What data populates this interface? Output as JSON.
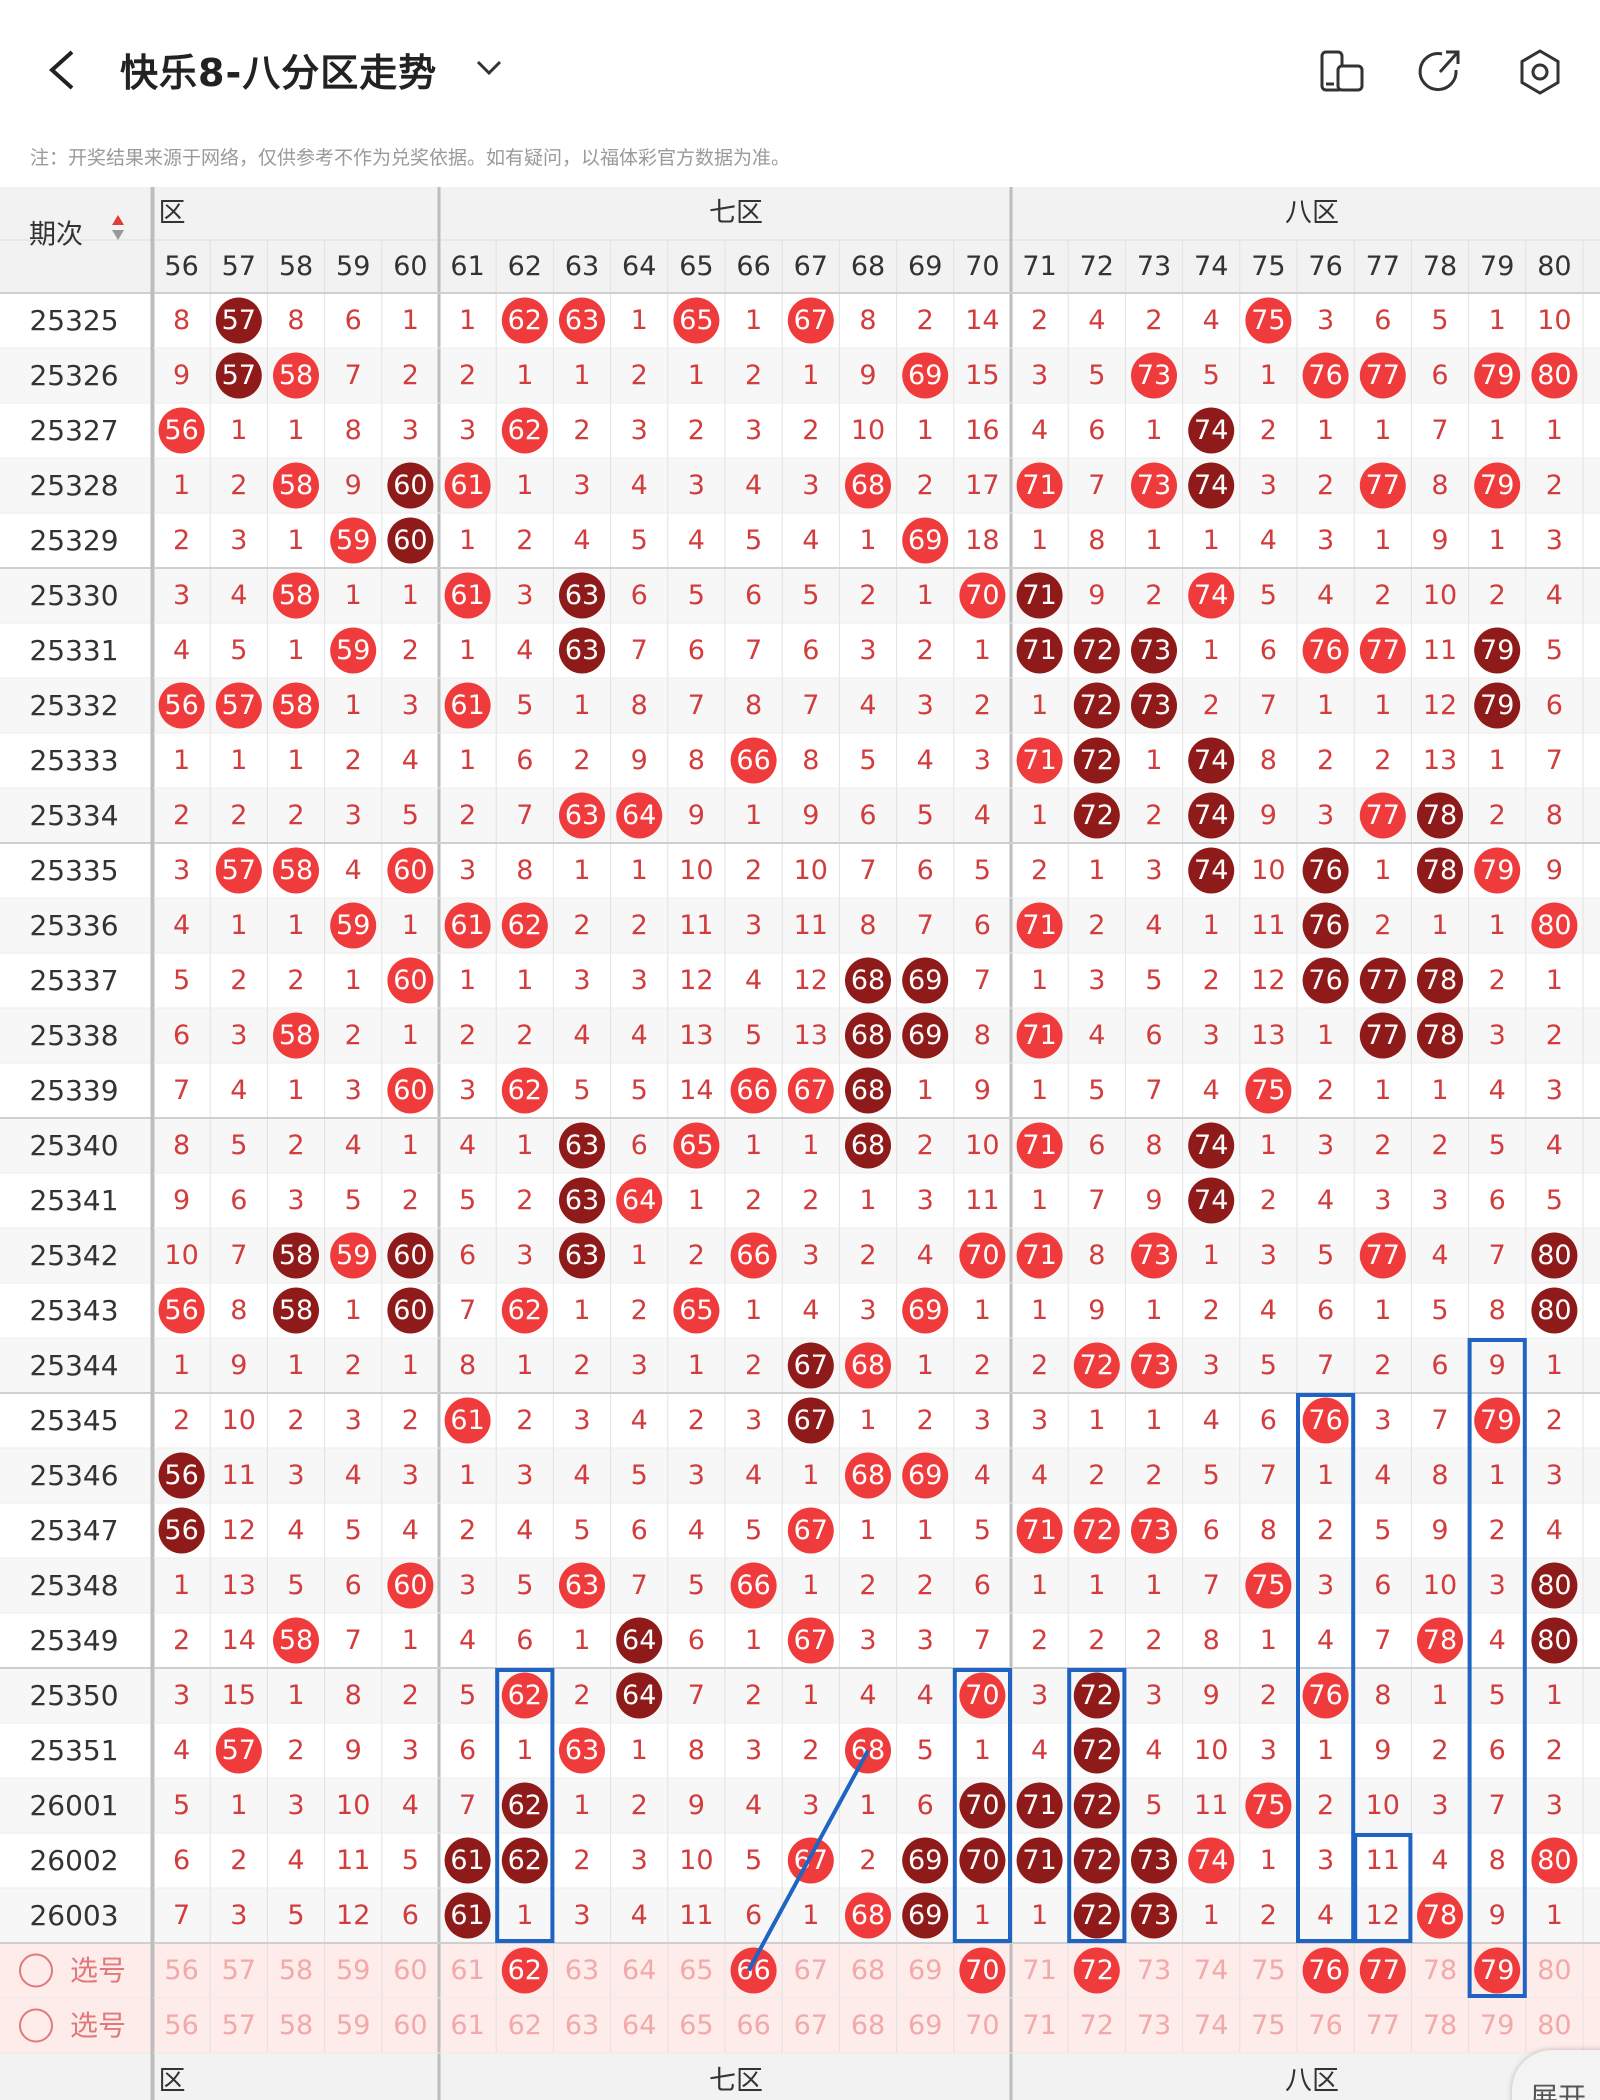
{
  "header": {
    "title": "快乐8-八分区走势",
    "back_icon": "chevron-left-icon",
    "dropdown_icon": "chevron-down-icon",
    "icons": [
      "phone-tablet-icon",
      "share-icon",
      "settings-hexagon-icon"
    ]
  },
  "notice": "注：开奖结果来源于网络，仅供参考不作为兑奖依据。如有疑问，以福体彩官方数据为准。",
  "table": {
    "period_header": "期次",
    "zones": [
      "六区",
      "七区",
      "八区"
    ],
    "zone_labels_visible": [
      "区",
      "七区",
      "八区"
    ],
    "columns": [
      56,
      57,
      58,
      59,
      60,
      61,
      62,
      63,
      64,
      65,
      66,
      67,
      68,
      69,
      70,
      71,
      72,
      73,
      74,
      75,
      76,
      77,
      78,
      79,
      80
    ],
    "rows": [
      {
        "period": "25325",
        "cells": [
          8,
          57,
          8,
          6,
          1,
          1,
          62,
          63,
          1,
          65,
          1,
          67,
          8,
          2,
          14,
          2,
          4,
          2,
          4,
          75,
          3,
          6,
          5,
          1,
          10
        ]
      },
      {
        "period": "25326",
        "cells": [
          9,
          57,
          58,
          7,
          2,
          2,
          1,
          1,
          2,
          1,
          2,
          1,
          9,
          69,
          15,
          3,
          5,
          73,
          5,
          1,
          76,
          77,
          6,
          79,
          80
        ]
      },
      {
        "period": "25327",
        "cells": [
          56,
          1,
          1,
          8,
          3,
          3,
          62,
          2,
          3,
          2,
          3,
          2,
          10,
          1,
          16,
          4,
          6,
          1,
          74,
          2,
          1,
          1,
          7,
          1,
          1
        ]
      },
      {
        "period": "25328",
        "cells": [
          1,
          2,
          58,
          9,
          60,
          61,
          1,
          3,
          4,
          3,
          4,
          3,
          68,
          2,
          17,
          71,
          7,
          73,
          74,
          3,
          2,
          77,
          8,
          79,
          2
        ]
      },
      {
        "period": "25329",
        "cells": [
          2,
          3,
          1,
          59,
          60,
          1,
          2,
          4,
          5,
          4,
          5,
          4,
          1,
          69,
          18,
          1,
          8,
          1,
          1,
          4,
          3,
          1,
          9,
          1,
          3
        ]
      },
      {
        "period": "25330",
        "cells": [
          3,
          4,
          58,
          1,
          1,
          61,
          3,
          63,
          6,
          5,
          6,
          5,
          2,
          1,
          70,
          71,
          9,
          2,
          74,
          5,
          4,
          2,
          10,
          2,
          4
        ]
      },
      {
        "period": "25331",
        "cells": [
          4,
          5,
          1,
          59,
          2,
          1,
          4,
          63,
          7,
          6,
          7,
          6,
          3,
          2,
          1,
          71,
          72,
          73,
          1,
          6,
          76,
          77,
          11,
          79,
          5
        ]
      },
      {
        "period": "25332",
        "cells": [
          56,
          57,
          58,
          1,
          3,
          61,
          5,
          1,
          8,
          7,
          8,
          7,
          4,
          3,
          2,
          1,
          72,
          73,
          2,
          7,
          1,
          1,
          12,
          79,
          6
        ]
      },
      {
        "period": "25333",
        "cells": [
          1,
          1,
          1,
          2,
          4,
          1,
          6,
          2,
          9,
          8,
          66,
          8,
          5,
          4,
          3,
          71,
          72,
          1,
          74,
          8,
          2,
          2,
          13,
          1,
          7
        ]
      },
      {
        "period": "25334",
        "cells": [
          2,
          2,
          2,
          3,
          5,
          2,
          7,
          63,
          64,
          9,
          1,
          9,
          6,
          5,
          4,
          1,
          72,
          2,
          74,
          9,
          3,
          77,
          78,
          2,
          8
        ]
      },
      {
        "period": "25335",
        "cells": [
          3,
          57,
          58,
          4,
          60,
          3,
          8,
          1,
          1,
          10,
          2,
          10,
          7,
          6,
          5,
          2,
          1,
          3,
          74,
          10,
          76,
          1,
          78,
          79,
          9
        ]
      },
      {
        "period": "25336",
        "cells": [
          4,
          1,
          1,
          59,
          1,
          61,
          62,
          2,
          2,
          11,
          3,
          11,
          8,
          7,
          6,
          71,
          2,
          4,
          1,
          11,
          76,
          2,
          1,
          1,
          80
        ]
      },
      {
        "period": "25337",
        "cells": [
          5,
          2,
          2,
          1,
          60,
          1,
          1,
          3,
          3,
          12,
          4,
          12,
          68,
          69,
          7,
          1,
          3,
          5,
          2,
          12,
          76,
          77,
          78,
          2,
          1
        ]
      },
      {
        "period": "25338",
        "cells": [
          6,
          3,
          58,
          2,
          1,
          2,
          2,
          4,
          4,
          13,
          5,
          13,
          68,
          69,
          8,
          71,
          4,
          6,
          3,
          13,
          1,
          77,
          78,
          3,
          2
        ]
      },
      {
        "period": "25339",
        "cells": [
          7,
          4,
          1,
          3,
          60,
          3,
          62,
          5,
          5,
          14,
          66,
          67,
          68,
          1,
          9,
          1,
          5,
          7,
          4,
          75,
          2,
          1,
          1,
          4,
          3
        ]
      },
      {
        "period": "25340",
        "cells": [
          8,
          5,
          2,
          4,
          1,
          4,
          1,
          63,
          6,
          65,
          1,
          1,
          68,
          2,
          10,
          71,
          6,
          8,
          74,
          1,
          3,
          2,
          2,
          5,
          4
        ]
      },
      {
        "period": "25341",
        "cells": [
          9,
          6,
          3,
          5,
          2,
          5,
          2,
          63,
          64,
          1,
          2,
          2,
          1,
          3,
          11,
          1,
          7,
          9,
          74,
          2,
          4,
          3,
          3,
          6,
          5
        ]
      },
      {
        "period": "25342",
        "cells": [
          10,
          7,
          58,
          59,
          60,
          6,
          3,
          63,
          1,
          2,
          66,
          3,
          2,
          4,
          70,
          71,
          8,
          73,
          1,
          3,
          5,
          77,
          4,
          7,
          80
        ]
      },
      {
        "period": "25343",
        "cells": [
          56,
          8,
          58,
          1,
          60,
          7,
          62,
          1,
          2,
          65,
          1,
          4,
          3,
          69,
          1,
          1,
          9,
          1,
          2,
          4,
          6,
          1,
          5,
          8,
          80
        ]
      },
      {
        "period": "25344",
        "cells": [
          1,
          9,
          1,
          2,
          1,
          8,
          1,
          2,
          3,
          1,
          2,
          67,
          68,
          1,
          2,
          2,
          72,
          73,
          3,
          5,
          7,
          2,
          6,
          9,
          1
        ]
      },
      {
        "period": "25345",
        "cells": [
          2,
          10,
          2,
          3,
          2,
          61,
          2,
          3,
          4,
          2,
          3,
          67,
          1,
          2,
          3,
          3,
          1,
          1,
          4,
          6,
          76,
          3,
          7,
          79,
          2
        ]
      },
      {
        "period": "25346",
        "cells": [
          56,
          11,
          3,
          4,
          3,
          1,
          3,
          4,
          5,
          3,
          4,
          1,
          68,
          69,
          4,
          4,
          2,
          2,
          5,
          7,
          1,
          4,
          8,
          1,
          3
        ]
      },
      {
        "period": "25347",
        "cells": [
          56,
          12,
          4,
          5,
          4,
          2,
          4,
          5,
          6,
          4,
          5,
          67,
          1,
          1,
          5,
          71,
          72,
          73,
          6,
          8,
          2,
          5,
          9,
          2,
          4
        ]
      },
      {
        "period": "25348",
        "cells": [
          1,
          13,
          5,
          6,
          60,
          3,
          5,
          63,
          7,
          5,
          66,
          1,
          2,
          2,
          6,
          1,
          1,
          1,
          7,
          75,
          3,
          6,
          10,
          3,
          80
        ]
      },
      {
        "period": "25349",
        "cells": [
          2,
          14,
          58,
          7,
          1,
          4,
          6,
          1,
          64,
          6,
          1,
          67,
          3,
          3,
          7,
          2,
          2,
          2,
          8,
          1,
          4,
          7,
          78,
          4,
          80
        ]
      },
      {
        "period": "25350",
        "cells": [
          3,
          15,
          1,
          8,
          2,
          5,
          62,
          2,
          64,
          7,
          2,
          1,
          4,
          4,
          70,
          3,
          72,
          3,
          9,
          2,
          76,
          8,
          1,
          5,
          1
        ]
      },
      {
        "period": "25351",
        "cells": [
          4,
          57,
          2,
          9,
          3,
          6,
          1,
          63,
          1,
          8,
          3,
          2,
          68,
          5,
          1,
          4,
          72,
          4,
          10,
          3,
          1,
          9,
          2,
          6,
          2
        ]
      },
      {
        "period": "26001",
        "cells": [
          5,
          1,
          3,
          10,
          4,
          7,
          62,
          1,
          2,
          9,
          4,
          3,
          1,
          6,
          70,
          71,
          72,
          5,
          11,
          75,
          2,
          10,
          3,
          7,
          3
        ]
      },
      {
        "period": "26002",
        "cells": [
          6,
          2,
          4,
          11,
          5,
          61,
          62,
          2,
          3,
          10,
          5,
          67,
          2,
          69,
          70,
          71,
          72,
          73,
          74,
          1,
          3,
          11,
          4,
          8,
          80
        ]
      },
      {
        "period": "26003",
        "cells": [
          7,
          3,
          5,
          12,
          6,
          61,
          1,
          3,
          4,
          11,
          6,
          1,
          68,
          69,
          1,
          1,
          72,
          73,
          1,
          2,
          4,
          12,
          78,
          9,
          1
        ]
      }
    ],
    "select_rows": [
      {
        "label": "选号",
        "selected": [
          62,
          66,
          70,
          72,
          76,
          77,
          79
        ]
      },
      {
        "label": "选号",
        "selected": []
      }
    ],
    "colors": {
      "hit": "#ef3b3b",
      "streak": "#8e1a1a",
      "miss_text": "#d23c3c",
      "box": "#1f64c2"
    }
  },
  "expand_button": "展开"
}
